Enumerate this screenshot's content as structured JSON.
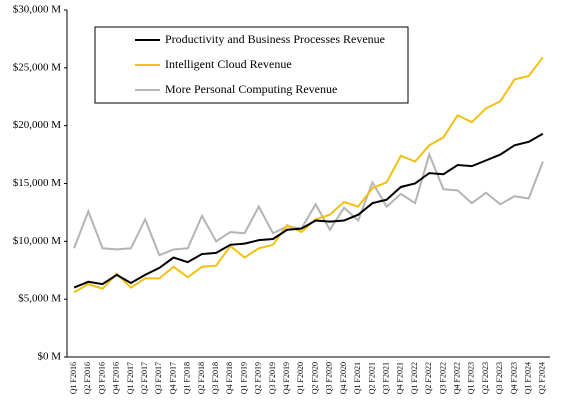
{
  "chart_data": {
    "type": "line",
    "categories": [
      "Q1 F2016",
      "Q2 F2016",
      "Q3 F2016",
      "Q4 F2016",
      "Q1 F2017",
      "Q2 F2017",
      "Q3 F2017",
      "Q4 F2017",
      "Q1 F2018",
      "Q2 F2018",
      "Q3 F2018",
      "Q4 F2018",
      "Q1 F2019",
      "Q2 F2019",
      "Q3 F2019",
      "Q4 F2019",
      "Q1 F2020",
      "Q2 F2020",
      "Q3 F2020",
      "Q4 F2020",
      "Q1 F2021",
      "Q2 F2021",
      "Q3 F2021",
      "Q4 F2021",
      "Q1 F2022",
      "Q2 F2022",
      "Q3 F2022",
      "Q4 F2022",
      "Q1 F2023",
      "Q2 F2023",
      "Q3 F2023",
      "Q4 F2023",
      "Q1 F2024",
      "Q2 F2024"
    ],
    "series": [
      {
        "name": "Productivity and Business Processes Revenue",
        "color": "#000000",
        "values": [
          6000,
          6500,
          6300,
          7100,
          6400,
          7100,
          7700,
          8600,
          8200,
          8900,
          9000,
          9700,
          9800,
          10100,
          10200,
          11000,
          11100,
          11800,
          11700,
          11800,
          12300,
          13300,
          13600,
          14700,
          15000,
          15900,
          15800,
          16600,
          16500,
          17000,
          17500,
          18300,
          18600,
          19300
        ]
      },
      {
        "name": "Intelligent Cloud Revenue",
        "color": "#f2c012",
        "values": [
          5600,
          6300,
          5900,
          7200,
          6000,
          6800,
          6800,
          7800,
          6900,
          7800,
          7900,
          9600,
          8600,
          9400,
          9700,
          11400,
          10800,
          11900,
          12300,
          13400,
          13000,
          14600,
          15100,
          17400,
          16900,
          18300,
          19000,
          20900,
          20300,
          21500,
          22100,
          24000,
          24300,
          25900
        ]
      },
      {
        "name": "More Personal Computing Revenue",
        "color": "#b4b4b4",
        "values": [
          9400,
          12600,
          9400,
          9300,
          9400,
          11900,
          8800,
          9300,
          9400,
          12200,
          10000,
          10800,
          10700,
          13000,
          10700,
          11300,
          11100,
          13200,
          11000,
          12900,
          11800,
          15100,
          13000,
          14100,
          13300,
          17500,
          14500,
          14400,
          13300,
          14200,
          13200,
          13900,
          13700,
          16900
        ]
      }
    ],
    "ylim": [
      0,
      30000
    ],
    "yticks": [
      {
        "value": 0,
        "label": "$0 M"
      },
      {
        "value": 5000,
        "label": "$5,000 M"
      },
      {
        "value": 10000,
        "label": "$10,000 M"
      },
      {
        "value": 15000,
        "label": "$15,000 M"
      },
      {
        "value": 20000,
        "label": "$20,000 M"
      },
      {
        "value": 25000,
        "label": "$25,000 M"
      },
      {
        "value": 30000,
        "label": "$30,000 M"
      }
    ],
    "grid": false
  }
}
